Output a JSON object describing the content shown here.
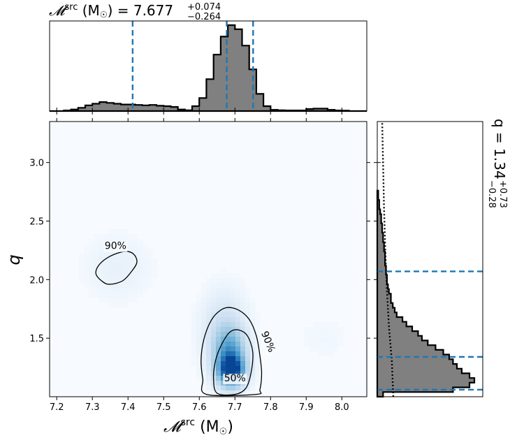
{
  "chart_data": {
    "type": "corner-plot",
    "top_title": {
      "prefix": "𝓜",
      "sup": "src",
      "unit": " (M",
      "sun": "☉",
      "close": ") = 7.677",
      "err_up": "+0.074",
      "err_down": "−0.264"
    },
    "right_title": {
      "prefix": "q = 1.34",
      "err_up": "+0.73",
      "err_down": "−0.28"
    },
    "xlabel": {
      "prefix": "𝓜",
      "sup": "src",
      "unit": " (M",
      "sun": "☉",
      "close": ")"
    },
    "ylabel": "q",
    "xlim": [
      7.18,
      8.07
    ],
    "ylim": [
      1.0,
      3.35
    ],
    "xticks": [
      "7.2",
      "7.3",
      "7.4",
      "7.5",
      "7.6",
      "7.7",
      "7.8",
      "7.9",
      "8.0"
    ],
    "xtick_values": [
      7.2,
      7.3,
      7.4,
      7.5,
      7.6,
      7.7,
      7.8,
      7.9,
      8.0
    ],
    "yticks": [
      "1.5",
      "2.0",
      "2.5",
      "3.0"
    ],
    "ytick_values": [
      1.5,
      2.0,
      2.5,
      3.0
    ],
    "mc_hist": {
      "bin_edges": [
        7.18,
        7.2,
        7.22,
        7.24,
        7.26,
        7.28,
        7.3,
        7.32,
        7.34,
        7.36,
        7.38,
        7.4,
        7.42,
        7.44,
        7.46,
        7.48,
        7.5,
        7.52,
        7.54,
        7.56,
        7.58,
        7.6,
        7.62,
        7.64,
        7.66,
        7.68,
        7.7,
        7.72,
        7.74,
        7.76,
        7.78,
        7.8,
        7.82,
        7.84,
        7.86,
        7.88,
        7.9,
        7.92,
        7.94,
        7.96,
        7.98,
        8.0,
        8.02,
        8.04,
        8.06
      ],
      "counts": [
        0,
        0,
        0.3,
        0.8,
        1.6,
        2.8,
        3.6,
        4.4,
        4.0,
        3.6,
        3.2,
        3.2,
        3.0,
        2.8,
        3.0,
        2.6,
        2.4,
        2.0,
        0.8,
        0.4,
        2.4,
        6.4,
        15.6,
        27.6,
        36.4,
        42.0,
        40.0,
        32.0,
        20.4,
        8.4,
        2.4,
        0.6,
        0.4,
        0.3,
        0.3,
        0.3,
        1.0,
        1.2,
        1.2,
        0.6,
        0.3,
        0.2,
        0,
        0
      ],
      "quantiles": [
        7.413,
        7.677,
        7.751
      ]
    },
    "q_hist": {
      "bin_edges": [
        1.0,
        1.04,
        1.08,
        1.12,
        1.16,
        1.2,
        1.24,
        1.28,
        1.32,
        1.36,
        1.4,
        1.44,
        1.48,
        1.52,
        1.56,
        1.6,
        1.64,
        1.68,
        1.72,
        1.76,
        1.8,
        1.84,
        1.88,
        1.92,
        1.96,
        2.0,
        2.04,
        2.08,
        2.12,
        2.16,
        2.2,
        2.24,
        2.28,
        2.32,
        2.36,
        2.4,
        2.44,
        2.48,
        2.52,
        2.56,
        2.6,
        2.64,
        2.68,
        2.72,
        2.76
      ],
      "counts": [
        0.06,
        0.78,
        0.95,
        1.0,
        0.95,
        0.87,
        0.82,
        0.78,
        0.74,
        0.68,
        0.6,
        0.52,
        0.46,
        0.42,
        0.36,
        0.3,
        0.26,
        0.2,
        0.18,
        0.16,
        0.14,
        0.14,
        0.12,
        0.11,
        0.1,
        0.1,
        0.09,
        0.09,
        0.08,
        0.08,
        0.08,
        0.07,
        0.07,
        0.06,
        0.06,
        0.05,
        0.05,
        0.04,
        0.04,
        0.03,
        0.02,
        0.02,
        0.01,
        0.01
      ],
      "quantiles": [
        1.06,
        1.34,
        2.07
      ],
      "prior": [
        [
          1.0,
          0.165
        ],
        [
          1.3,
          0.15
        ],
        [
          1.6,
          0.12
        ],
        [
          1.9,
          0.1
        ],
        [
          2.2,
          0.085
        ],
        [
          2.6,
          0.07
        ],
        [
          3.0,
          0.06
        ],
        [
          3.35,
          0.05
        ]
      ]
    },
    "density_blobs": [
      {
        "mc": 7.69,
        "q": 1.22,
        "smc": 0.025,
        "sq": 0.09,
        "w": 1.0
      },
      {
        "mc": 7.685,
        "q": 1.38,
        "smc": 0.03,
        "sq": 0.14,
        "w": 0.5
      },
      {
        "mc": 7.67,
        "q": 1.55,
        "smc": 0.04,
        "sq": 0.22,
        "w": 0.18
      },
      {
        "mc": 7.37,
        "q": 2.1,
        "smc": 0.06,
        "sq": 0.18,
        "w": 0.05
      },
      {
        "mc": 7.95,
        "q": 1.5,
        "smc": 0.05,
        "sq": 0.12,
        "w": 0.02
      }
    ],
    "contour_90_main": [
      [
        7.62,
        1.02
      ],
      [
        7.61,
        1.15
      ],
      [
        7.605,
        1.3
      ],
      [
        7.61,
        1.45
      ],
      [
        7.625,
        1.6
      ],
      [
        7.645,
        1.7
      ],
      [
        7.675,
        1.76
      ],
      [
        7.71,
        1.74
      ],
      [
        7.74,
        1.66
      ],
      [
        7.76,
        1.52
      ],
      [
        7.77,
        1.35
      ],
      [
        7.775,
        1.2
      ],
      [
        7.77,
        1.06
      ],
      [
        7.76,
        1.02
      ]
    ],
    "contour_90_left": [
      [
        7.33,
        1.98
      ],
      [
        7.31,
        2.05
      ],
      [
        7.32,
        2.13
      ],
      [
        7.35,
        2.2
      ],
      [
        7.39,
        2.24
      ],
      [
        7.415,
        2.22
      ],
      [
        7.425,
        2.15
      ],
      [
        7.41,
        2.07
      ],
      [
        7.385,
        1.99
      ],
      [
        7.35,
        1.96
      ]
    ],
    "contour_50": [
      [
        7.65,
        1.03
      ],
      [
        7.64,
        1.15
      ],
      [
        7.645,
        1.3
      ],
      [
        7.66,
        1.43
      ],
      [
        7.685,
        1.55
      ],
      [
        7.71,
        1.57
      ],
      [
        7.735,
        1.52
      ],
      [
        7.75,
        1.38
      ],
      [
        7.745,
        1.2
      ],
      [
        7.73,
        1.07
      ],
      [
        7.7,
        1.02
      ]
    ],
    "contour_labels": [
      "90%",
      "90%",
      "50%"
    ]
  }
}
